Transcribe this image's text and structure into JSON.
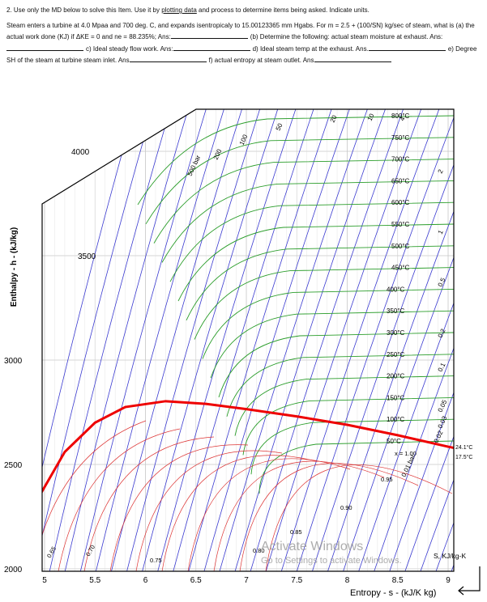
{
  "question": {
    "heading": [
      "2.  Use only the MD below to solve this Item. Use it by ",
      "plotting data",
      " and process to determine items being asked. Indicate units."
    ],
    "body": [
      "Steam enters a turbine at 4.0 Mpaa  and 700 deg. C, and expands isentropicaly  to 15.00123365 mm Hgabs.  For m = 2.5 +  (100/SN) kg/sec of steam, what is (a) the actual work done (KJ) if ΔKE = 0 and ne = 88.235%; Ans:",
      "(b) Determine the following: actual steam moisture at exhaust. Ans:",
      "c) Ideal steady flow work. Ans:",
      "d) Ideal steam temp at the exhaust. Ans.",
      "e) Degree SH of the steam at turbine steam inlet. Ans",
      "f) actual entropy at steam outlet.  Ans"
    ]
  },
  "chart": {
    "y_label": "Enthalpy - h - (kJ/kg)",
    "x_label": "Entropy - s - (kJ/K kg)",
    "side_label": "S, KJ/kg-K",
    "yticks": [
      2000,
      2500,
      3000,
      3500,
      4000
    ],
    "xticks": [
      5,
      5.5,
      6,
      6.5,
      7,
      7.5,
      8,
      8.5,
      9
    ],
    "temperatures": [
      "800°C",
      "750°C",
      "700°C",
      "650°C",
      "600°C",
      "550°C",
      "500°C",
      "450°C",
      "400°C",
      "350°C",
      "300°C",
      "250°C",
      "200°C",
      "150°C",
      "100°C",
      "50°C"
    ],
    "pressures": [
      "500 bar",
      "200",
      "100",
      "50",
      "20",
      "10",
      "4",
      "2",
      "1",
      "0.5",
      "0.2",
      "0.1",
      "0.05",
      "0.03",
      "0.02",
      "0.01 bar"
    ],
    "qualities": [
      "x = 1.00",
      "0.95",
      "0.90",
      "0.85",
      "0.80",
      "0.75",
      "0.70",
      "0.65"
    ],
    "annotations": [
      "24.1°C",
      "17.5°C"
    ],
    "watermark": [
      "Activate Windows",
      "Go to Settings to activate Windows."
    ]
  }
}
